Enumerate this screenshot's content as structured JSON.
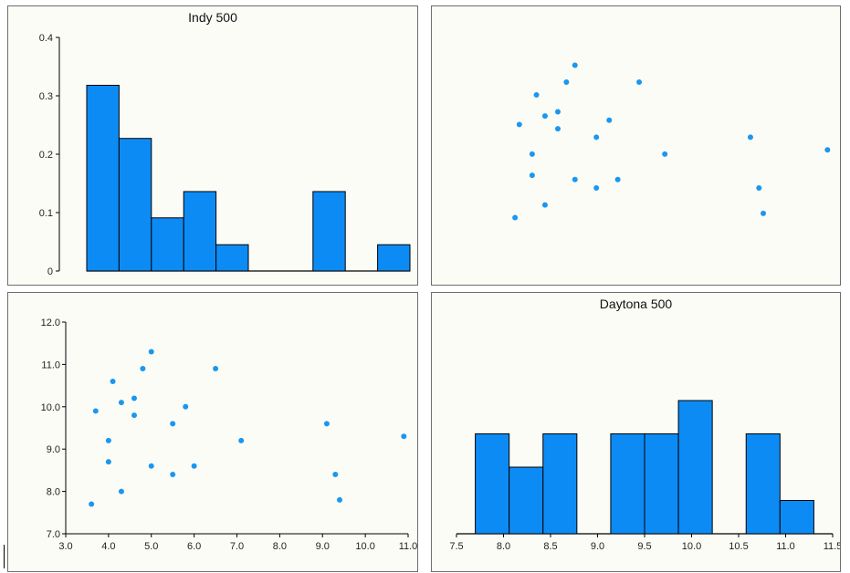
{
  "colors": {
    "bar_fill": "#0d8bf5",
    "bar_stroke": "#000000",
    "point": "#1a97f0",
    "panel_bg": "#fcfcf6",
    "axis": "#000000"
  },
  "chart_data": [
    {
      "type": "bar",
      "panel": "top-left",
      "title": "Indy 500",
      "subtype": "histogram",
      "bin_edges": [
        0,
        1,
        2,
        3,
        4,
        5,
        6,
        7,
        8,
        9,
        10
      ],
      "values": [
        0.318,
        0.227,
        0.091,
        0.136,
        0.045,
        0.0,
        0.0,
        0.136,
        0.0,
        0.045
      ],
      "ylim": [
        0,
        0.4
      ],
      "yticks": [
        "0",
        "0.1",
        "0.2",
        "0.3",
        "0.4"
      ],
      "xlabel": "",
      "ylabel": ""
    },
    {
      "type": "scatter",
      "panel": "top-right",
      "title": "",
      "x": [
        3.6,
        3.7,
        4.0,
        4.0,
        4.1,
        4.3,
        4.3,
        4.6,
        4.6,
        4.8,
        5.0,
        5.0,
        5.5,
        5.5,
        5.8,
        6.0,
        6.5,
        7.1,
        9.1,
        9.3,
        9.4,
        10.9
      ],
      "y": [
        7.7,
        9.9,
        9.2,
        8.7,
        10.6,
        8.0,
        10.1,
        9.8,
        10.2,
        10.9,
        11.3,
        8.6,
        8.4,
        9.6,
        10.0,
        8.6,
        10.9,
        9.2,
        9.6,
        8.4,
        7.8,
        9.3
      ],
      "xlim": [
        3.0,
        11.0
      ],
      "ylim": [
        7.0,
        12.0
      ],
      "axes_shown": false
    },
    {
      "type": "scatter",
      "panel": "bottom-left",
      "title": "",
      "x": [
        3.6,
        3.7,
        4.0,
        4.0,
        4.1,
        4.3,
        4.3,
        4.6,
        4.6,
        4.8,
        5.0,
        5.0,
        5.5,
        5.5,
        5.8,
        6.0,
        6.5,
        7.1,
        9.1,
        9.3,
        9.4,
        10.9
      ],
      "y": [
        7.7,
        9.9,
        9.2,
        8.7,
        10.6,
        8.0,
        10.1,
        9.8,
        10.2,
        10.9,
        11.3,
        8.6,
        8.4,
        9.6,
        10.0,
        8.6,
        10.9,
        9.2,
        9.6,
        8.4,
        7.8,
        9.3
      ],
      "xlim": [
        3.0,
        11.0
      ],
      "ylim": [
        7.0,
        12.0
      ],
      "xticks": [
        "3.0",
        "4.0",
        "5.0",
        "6.0",
        "7.0",
        "8.0",
        "9.0",
        "10.0",
        "11.0"
      ],
      "yticks": [
        "7.0",
        "8.0",
        "9.0",
        "10.0",
        "11.0",
        "12.0"
      ],
      "xlabel": "",
      "ylabel": ""
    },
    {
      "type": "bar",
      "panel": "bottom-right",
      "title": "Daytona 500",
      "subtype": "histogram",
      "bin_edges": [
        7.7,
        8.06,
        8.42,
        8.78,
        9.14,
        9.5,
        9.86,
        10.22,
        10.58,
        10.94,
        11.3
      ],
      "values": [
        3,
        2,
        3,
        0,
        3,
        3,
        4,
        0,
        3,
        1
      ],
      "xlim": [
        7.5,
        11.5
      ],
      "xticks": [
        "7.5",
        "8.0",
        "8.5",
        "9.0",
        "9.5",
        "10.0",
        "10.5",
        "11.0",
        "11.5"
      ],
      "xlabel": "",
      "ylabel": ""
    }
  ]
}
